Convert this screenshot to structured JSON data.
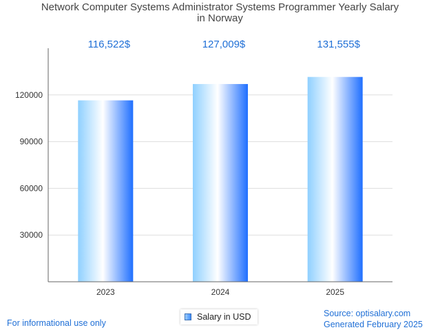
{
  "chart_data": {
    "type": "bar",
    "title_lines": [
      "Network Computer Systems Administrator Systems Programmer Yearly Salary",
      "in Norway"
    ],
    "categories": [
      "2023",
      "2024",
      "2025"
    ],
    "series": [
      {
        "name": "Salary in USD",
        "values": [
          116522,
          127009,
          131555
        ]
      }
    ],
    "value_labels": [
      "116,522$",
      "127,009$",
      "131,555$"
    ],
    "yticks": [
      30000,
      60000,
      90000,
      120000
    ],
    "ylim": [
      0,
      150000
    ],
    "grid": true,
    "legend_position": "bottom"
  },
  "footer": {
    "left": "For informational use only",
    "source": "Source: optisalary.com",
    "generated": "Generated February 2025"
  },
  "colors": {
    "bar_light": "#ffffff",
    "bar_mid": "#8fd0ff",
    "bar_dark": "#1f6fff",
    "value_label": "#1f6fd6",
    "grid": "#dddddd",
    "axis": "#666666"
  }
}
